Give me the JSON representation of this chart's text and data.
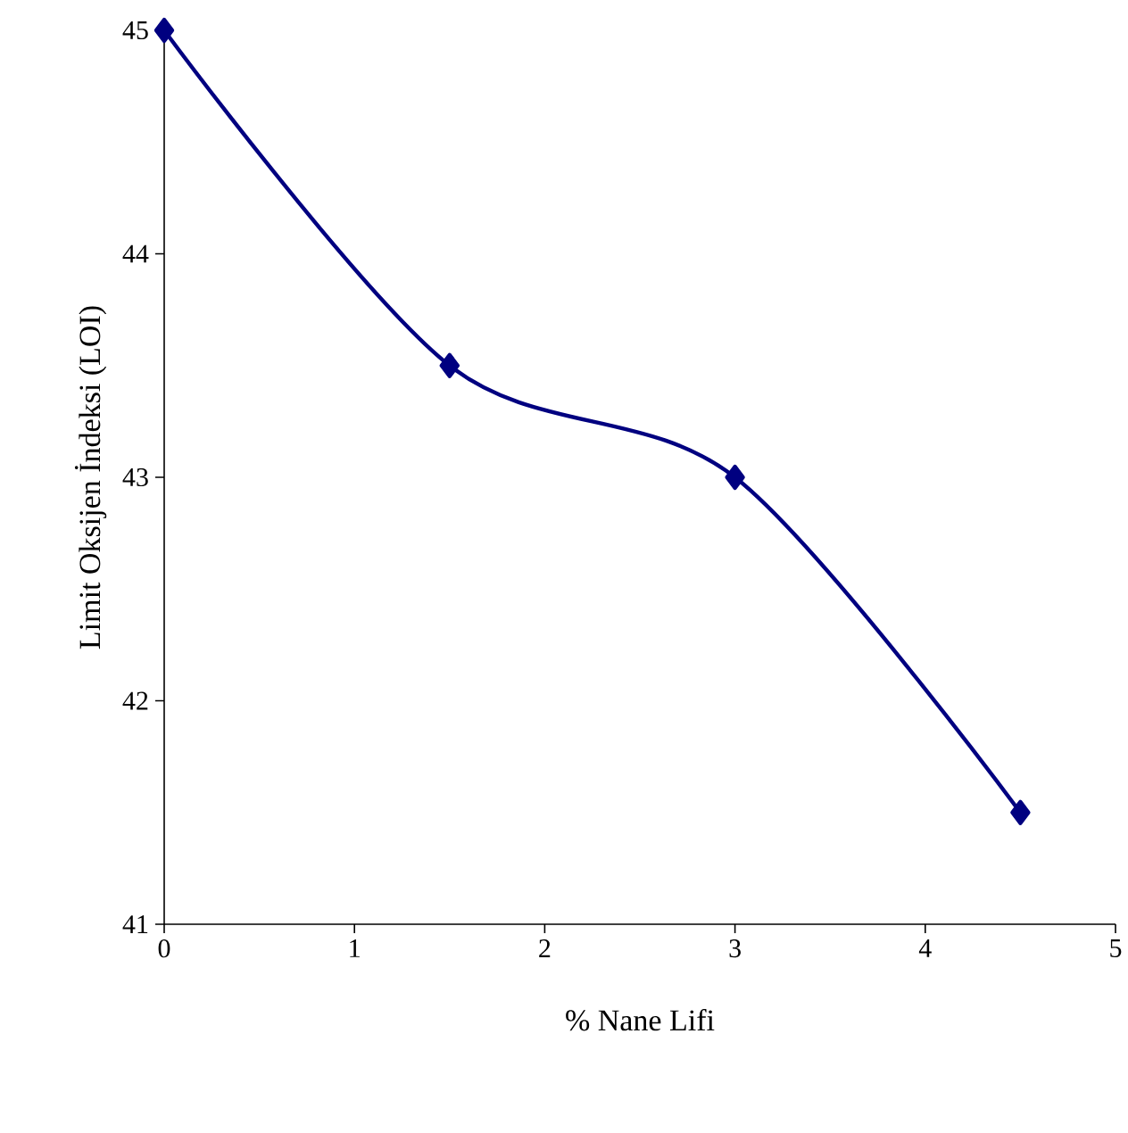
{
  "chart_data": {
    "type": "line",
    "xlabel": "% Nane Lifi",
    "ylabel": "Limit Oksijen İndeksi (LOI)",
    "x": [
      0,
      1.5,
      3,
      4.5
    ],
    "series": [
      {
        "color": "#000080",
        "values": [
          45,
          43.5,
          43,
          41.5
        ]
      }
    ],
    "xlim": [
      0,
      5
    ],
    "xticks": [
      0,
      1,
      2,
      3,
      4,
      5
    ],
    "ylim": [
      41,
      45
    ],
    "yticks": [
      41,
      42,
      43,
      44,
      45
    ],
    "marker": "diamond"
  }
}
